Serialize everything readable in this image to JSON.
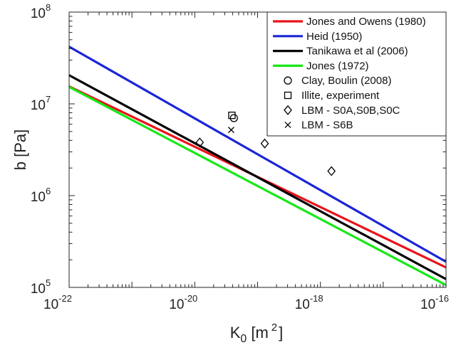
{
  "chart_data": {
    "type": "line",
    "x_scale": "log",
    "y_scale": "log",
    "xlim": [
      1e-22,
      1e-16
    ],
    "ylim": [
      100000,
      100000000
    ],
    "xlabel": {
      "base": "K",
      "sub": "0",
      "unit_pre": "[m",
      "unit_sup": "2",
      "unit_post": "]"
    },
    "ylabel": "b [Pa]",
    "x_ticks": [
      {
        "value": 1e-22,
        "base": "10",
        "exp": "-22"
      },
      {
        "value": 1e-20,
        "base": "10",
        "exp": "-20"
      },
      {
        "value": 1e-18,
        "base": "10",
        "exp": "-18"
      },
      {
        "value": 1e-16,
        "base": "10",
        "exp": "-16"
      }
    ],
    "y_ticks": [
      {
        "value": 100000,
        "base": "10",
        "exp": "5"
      },
      {
        "value": 1000000,
        "base": "10",
        "exp": "6"
      },
      {
        "value": 10000000,
        "base": "10",
        "exp": "7"
      },
      {
        "value": 100000000,
        "base": "10",
        "exp": "8"
      }
    ],
    "grid": false,
    "legend_position": "top-right",
    "series": [
      {
        "name": "Jones and Owens (1980)",
        "kind": "line",
        "color": "#e8141b",
        "x": [
          1e-22,
          1e-16
        ],
        "y": [
          15500000,
          165000
        ]
      },
      {
        "name": "Heid (1950)",
        "kind": "line",
        "color": "#1b25d8",
        "x": [
          1e-22,
          1e-16
        ],
        "y": [
          42000000,
          190000
        ]
      },
      {
        "name": "Tanikawa et al (2006)",
        "kind": "line",
        "color": "#000000",
        "x": [
          1e-22,
          1e-16
        ],
        "y": [
          20500000,
          123000
        ]
      },
      {
        "name": "Jones (1972)",
        "kind": "line",
        "color": "#17e817",
        "x": [
          1e-22,
          1e-16
        ],
        "y": [
          15300000,
          106000
        ]
      },
      {
        "name": "Clay,  Boulin (2008)",
        "kind": "marker",
        "marker": "circle",
        "color": "#000000",
        "x": [
          4.2e-20
        ],
        "y": [
          7000000
        ]
      },
      {
        "name": "Illite, experiment",
        "kind": "marker",
        "marker": "square",
        "color": "#000000",
        "x": [
          3.9e-20
        ],
        "y": [
          7500000
        ]
      },
      {
        "name": "LBM - S0A,S0B,S0C",
        "kind": "marker",
        "marker": "diamond",
        "color": "#000000",
        "x": [
          1.2e-20,
          1.3e-19,
          1.5e-18
        ],
        "y": [
          3800000,
          3700000,
          1850000
        ]
      },
      {
        "name": "LBM - S6B",
        "kind": "marker",
        "marker": "x",
        "color": "#000000",
        "x": [
          3.8e-20
        ],
        "y": [
          5200000
        ]
      }
    ]
  }
}
